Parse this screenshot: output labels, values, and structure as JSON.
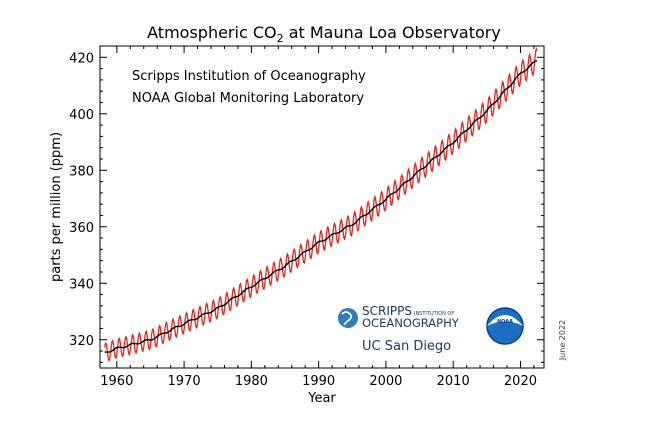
{
  "chart_data": {
    "type": "line",
    "title_main": "Atmospheric CO",
    "title_sub": "2",
    "title_rest": " at Mauna Loa Observatory",
    "xlabel": "Year",
    "ylabel": "parts per million (ppm)",
    "xlim": [
      1957.5,
      2023.5
    ],
    "ylim": [
      310,
      424
    ],
    "x_ticks": [
      1960,
      1970,
      1980,
      1990,
      2000,
      2010,
      2020
    ],
    "y_ticks": [
      320,
      340,
      360,
      380,
      400,
      420
    ],
    "grid": false,
    "credits": [
      "Scripps Institution of Oceanography",
      "NOAA Global Monitoring Laboratory"
    ],
    "date_note": "June 2022",
    "series": [
      {
        "role": "monthly",
        "color": "#e8231b",
        "seasonal_amplitude_ppm": 3.3
      },
      {
        "role": "trend",
        "color": "#000000",
        "x": [
          1958,
          1960,
          1965,
          1970,
          1975,
          1980,
          1985,
          1990,
          1995,
          2000,
          2005,
          2010,
          2015,
          2020,
          2022.5
        ],
        "values": [
          315.2,
          316.9,
          320.0,
          325.7,
          331.1,
          338.8,
          346.1,
          354.4,
          360.8,
          369.7,
          379.8,
          389.9,
          401.0,
          414.2,
          419.0
        ]
      }
    ]
  },
  "logos": {
    "scripps_line1": "SCRIPPS",
    "scripps_line1_small": "INSTITUTION OF",
    "scripps_line2": "OCEANOGRAPHY",
    "ucsd": "UC San Diego",
    "noaa": "NOAA",
    "colors": {
      "scripps_navy": "#1b3a6b",
      "scripps_globe": "#2f7fb8",
      "noaa_blue": "#1a6fc2",
      "noaa_dark": "#0b3d91"
    }
  }
}
